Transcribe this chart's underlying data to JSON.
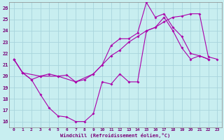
{
  "xlabel": "Windchill (Refroidissement éolien,°C)",
  "bg_color": "#c8eef0",
  "grid_color": "#a8d4dc",
  "line_color": "#aa00aa",
  "xlim": [
    -0.5,
    23.5
  ],
  "ylim": [
    15.5,
    26.5
  ],
  "yticks": [
    16,
    17,
    18,
    19,
    20,
    21,
    22,
    23,
    24,
    25,
    26
  ],
  "xticks": [
    0,
    1,
    2,
    3,
    4,
    5,
    6,
    7,
    8,
    9,
    10,
    11,
    12,
    13,
    14,
    15,
    16,
    17,
    18,
    19,
    20,
    21,
    22,
    23
  ],
  "line1_x": [
    0,
    1,
    2,
    3,
    4,
    5,
    6,
    7,
    8,
    9,
    10,
    11,
    12,
    13,
    14,
    15,
    16,
    17,
    18,
    19,
    20,
    21,
    22
  ],
  "line1_y": [
    21.5,
    20.3,
    19.7,
    18.4,
    17.2,
    16.5,
    16.4,
    16.0,
    16.0,
    16.7,
    19.5,
    19.3,
    20.2,
    19.5,
    19.5,
    24.0,
    24.3,
    25.2,
    24.0,
    22.5,
    21.5,
    21.8,
    21.5
  ],
  "line2_x": [
    0,
    1,
    2,
    3,
    4,
    5,
    6,
    7,
    8,
    9,
    10,
    11,
    12,
    13,
    14,
    15,
    16,
    17,
    18,
    19,
    20,
    21,
    22
  ],
  "line2_y": [
    21.5,
    20.3,
    19.7,
    20.0,
    20.2,
    20.0,
    20.1,
    19.5,
    19.7,
    20.2,
    21.0,
    22.7,
    23.3,
    23.3,
    23.8,
    26.5,
    25.2,
    25.5,
    24.3,
    23.5,
    22.0,
    21.8,
    21.5
  ],
  "line3_x": [
    0,
    1,
    3,
    5,
    7,
    9,
    11,
    12,
    13,
    14,
    15,
    16,
    17,
    18,
    19,
    20,
    21,
    22,
    23
  ],
  "line3_y": [
    21.5,
    20.3,
    20.0,
    20.0,
    19.5,
    20.2,
    21.8,
    22.3,
    23.0,
    23.5,
    24.0,
    24.3,
    24.8,
    25.2,
    25.3,
    25.5,
    25.5,
    21.7,
    21.5
  ]
}
